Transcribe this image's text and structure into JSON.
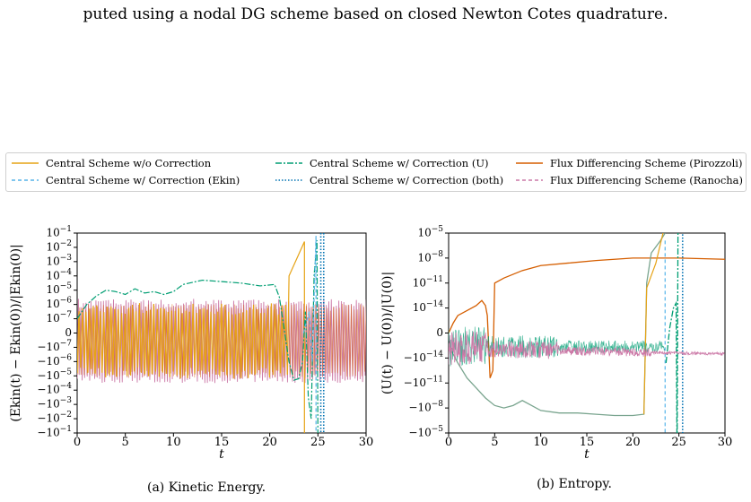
{
  "top_caption": "puted using a nodal DG scheme based on closed Newton Cotes quadrature.",
  "legend": [
    {
      "label": "Central Scheme w/o Correction",
      "color": "#e6a316",
      "dash": ""
    },
    {
      "label": "Central Scheme w/ Correction (Ekin)",
      "color": "#56b4e9",
      "dash": "4,3"
    },
    {
      "label": "Central Scheme w/ Correction (U)",
      "color": "#009e73",
      "dash": "7,2,2,2"
    },
    {
      "label": "Central Scheme w/ Correction (both)",
      "color": "#0072b2",
      "dash": "1.5,2"
    },
    {
      "label": "Flux Differencing Scheme (Pirozzoli)",
      "color": "#d55e00",
      "dash": ""
    },
    {
      "label": "Flux Differencing Scheme (Ranocha)",
      "color": "#cc79a7",
      "dash": "4,3"
    }
  ],
  "captions": {
    "a": "(a) Kinetic Energy.",
    "b": "(b) Entropy."
  },
  "chart_data": [
    {
      "type": "line",
      "xlabel": "t",
      "ylabel": "(Ekin(t) − Ekin(0))/|Ekin(0)|",
      "xlim": [
        0,
        30
      ],
      "xticks": [
        "0",
        "5",
        "10",
        "15",
        "20",
        "25",
        "30"
      ],
      "yscale": "symlog",
      "ytick_labels": [
        "10−1",
        "10−2",
        "10−3",
        "10−4",
        "10−5",
        "10−6",
        "10−7",
        "0",
        "−10−7",
        "−10−6",
        "−10−5",
        "−10−4",
        "−10−3",
        "−10−2",
        "−10−1"
      ],
      "series": [
        {
          "name": "Central Scheme w/o Correction",
          "x": [
            0,
            5,
            10,
            15,
            20,
            22,
            23.5
          ],
          "y": [
            1e-06,
            5e-06,
            1e-05,
            2e-05,
            2e-05,
            0.001,
            0.1
          ]
        },
        {
          "name": "Central Scheme w/ Correction (U)",
          "x": [
            0,
            1,
            3,
            5,
            7,
            10,
            13,
            15,
            18,
            20,
            21,
            22,
            24,
            25
          ],
          "y": [
            1e-06,
            1e-05,
            0.0001,
            0.00025,
            0.0001,
            0.0001,
            0.002,
            0.004,
            0.001,
            0.0005,
            0.001,
            0.1,
            -0.0001,
            -0.1
          ]
        },
        {
          "name": "Central Scheme w/ Correction (both)",
          "x": [
            0,
            23,
            25,
            25.3
          ],
          "y": [
            0,
            0,
            0.1,
            -0.1
          ]
        },
        {
          "name": "Flux Differencing Scheme (Ranocha)",
          "x": [
            0,
            30
          ],
          "y": [
            0,
            0
          ]
        }
      ]
    },
    {
      "type": "line",
      "xlabel": "t",
      "ylabel": "(U(t) − U(0))/|U(0)|",
      "xlim": [
        0,
        30
      ],
      "xticks": [
        "0",
        "5",
        "10",
        "15",
        "20",
        "25",
        "30"
      ],
      "yscale": "symlog",
      "ytick_labels": [
        "10−5",
        "10−8",
        "10−11",
        "10−14",
        "0",
        "−10−14",
        "−10−11",
        "−10−8",
        "−10−5"
      ],
      "series": [
        {
          "name": "Flux Differencing Scheme (Pirozzoli)",
          "x": [
            0,
            2,
            3,
            4,
            4.5,
            5,
            6,
            10,
            15,
            20,
            25,
            30
          ],
          "y": [
            1e-15,
            1e-13,
            1e-12,
            1e-13,
            -1e-10,
            1e-11,
            1e-10,
            3e-10,
            5e-10,
            6e-10,
            6e-10,
            5e-10
          ]
        },
        {
          "name": "Central Scheme w/o Correction",
          "x": [
            0,
            2,
            5,
            8,
            10,
            15,
            20,
            21.5,
            23.5
          ],
          "y": [
            -1e-13,
            -1e-11,
            -1e-09,
            -1e-08,
            -1e-08,
            -1e-08,
            -1e-08,
            1e-05,
            0.0001
          ]
        },
        {
          "name": "Central Scheme w/ Correction (U)",
          "x": [
            0,
            23.5,
            24,
            24.5,
            25
          ],
          "y": [
            0,
            -1e-14,
            1e-12,
            1e-09,
            -1e-05
          ]
        },
        {
          "name": "Flux Differencing Scheme (Ranocha)",
          "x": [
            0,
            30
          ],
          "y": [
            0,
            -1e-14
          ]
        }
      ]
    }
  ]
}
